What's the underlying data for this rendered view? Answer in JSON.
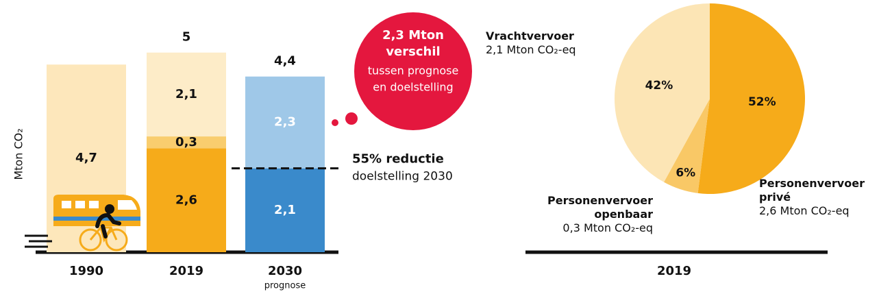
{
  "chart_data": [
    {
      "type": "bar",
      "stacked": true,
      "y_label": "Mton CO₂",
      "categories": [
        "1990",
        "2019",
        "2030"
      ],
      "category_notes": [
        null,
        null,
        "prognose"
      ],
      "series": [
        {
          "colors": [
            "#fde7bb",
            "#f6ab1a",
            "#3a8acb"
          ],
          "values": [
            4.7,
            2.6,
            2.1
          ],
          "value_labels": [
            "4,7",
            "2,6",
            "2,1"
          ],
          "label_colors": [
            "#111111",
            "#111111",
            "#ffffff"
          ]
        },
        {
          "colors": [
            null,
            "#f9cd6e",
            "#9fc8e8"
          ],
          "values": [
            null,
            0.3,
            2.3
          ],
          "value_labels": [
            null,
            "0,3",
            "2,3"
          ],
          "label_colors": [
            null,
            "#111111",
            "#ffffff"
          ]
        },
        {
          "colors": [
            null,
            "#fdecc8",
            null
          ],
          "values": [
            null,
            2.1,
            null
          ],
          "value_labels": [
            null,
            "2,1",
            null
          ],
          "label_colors": [
            null,
            "#111111",
            null
          ]
        }
      ],
      "totals": [
        null,
        5,
        4.4
      ],
      "total_labels": [
        null,
        "5",
        "4,4"
      ],
      "ylim": [
        0,
        6.3
      ],
      "target": {
        "value": 2.1,
        "title": "55% reductie",
        "subtitle": "doelstelling 2030"
      },
      "callout": {
        "title_lines": [
          "2,3 Mton",
          "verschil"
        ],
        "text_lines": [
          "tussen prognose",
          "en doelstelling"
        ],
        "color": "#e4173e"
      }
    },
    {
      "type": "pie",
      "x_label": "2019",
      "categories": [
        "Personenvervoer privé",
        "Personenvervoer openbaar",
        "Vrachtvervoer"
      ],
      "category_notes": [
        "2,6 Mton CO₂-eq",
        "0,3 Mton CO₂-eq",
        "2,1 Mton CO₂-eq"
      ],
      "values": [
        52,
        6,
        42
      ],
      "value_labels": [
        "52%",
        "6%",
        "42%"
      ],
      "colors": [
        "#f6ab1a",
        "#f9c866",
        "#fce5b5"
      ]
    }
  ]
}
